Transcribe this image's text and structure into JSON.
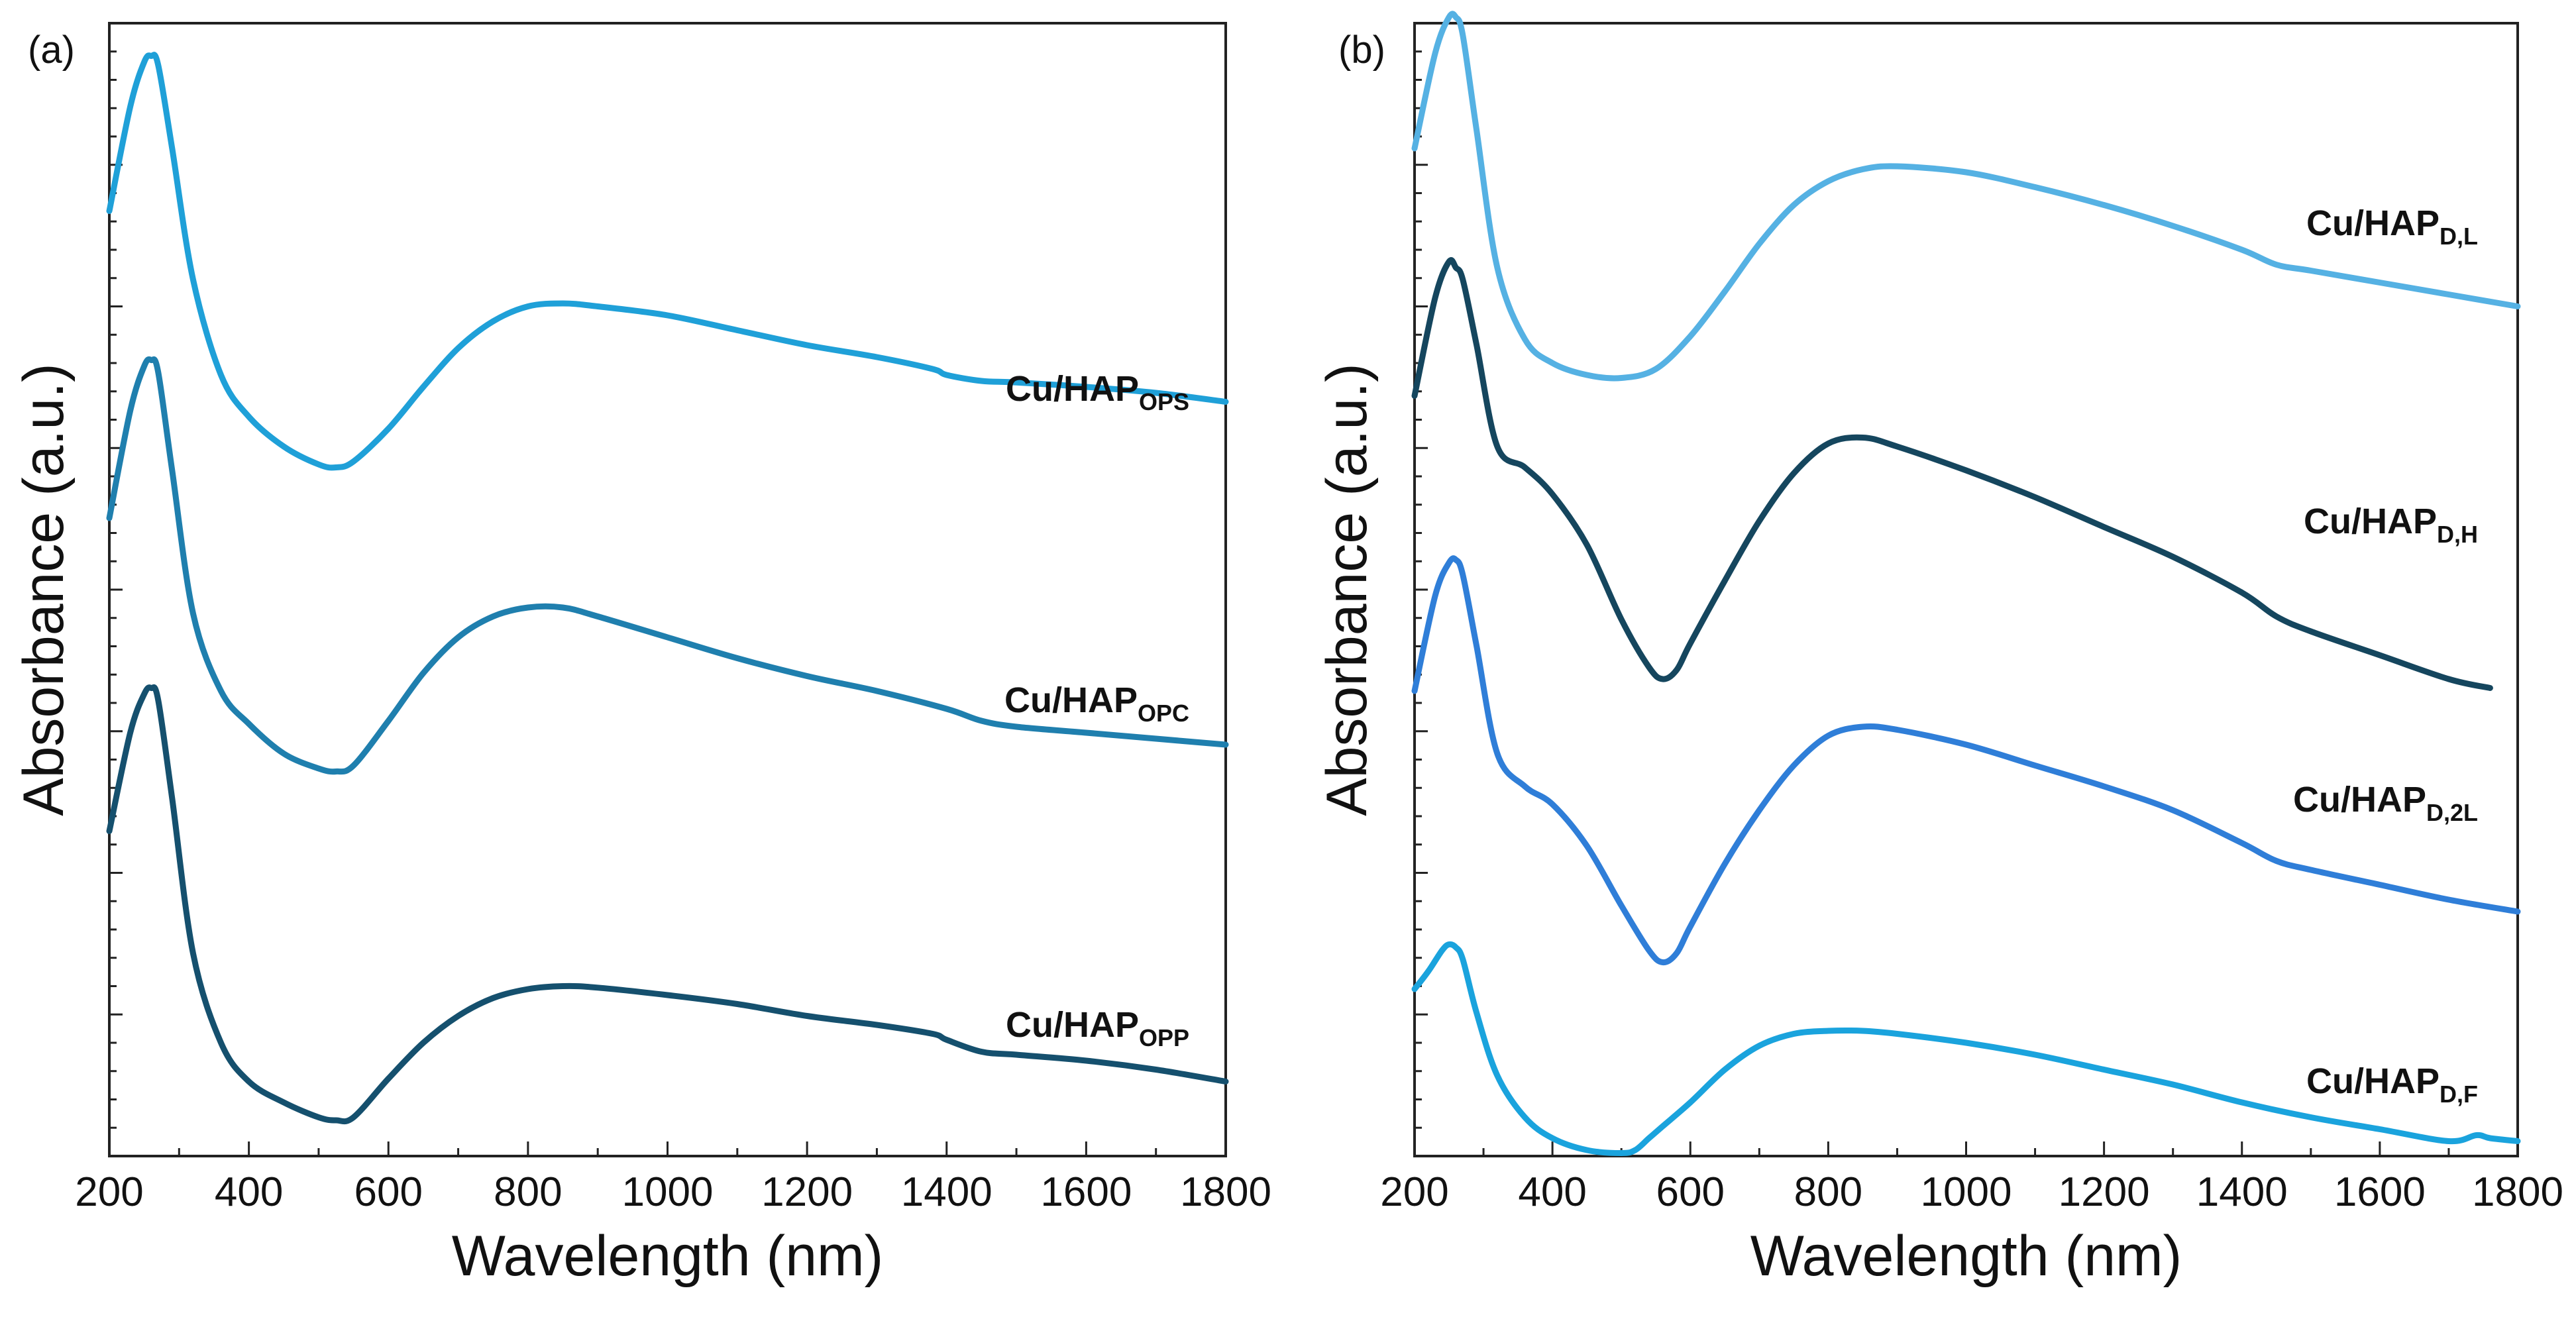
{
  "chart_data": [
    {
      "type": "line",
      "panel_label": "(a)",
      "xlabel": "Wavelength (nm)",
      "ylabel": "Absorbance (a.u.)",
      "xlim": [
        200,
        1800
      ],
      "ylim": [
        0,
        3.8
      ],
      "x_ticks": [
        200,
        400,
        600,
        800,
        1000,
        1200,
        1400,
        1600,
        1800
      ],
      "y_tick_labels": "none",
      "series": [
        {
          "name": "Cu/HAPOPS",
          "label_main": "Cu/HAP",
          "label_sub": "OPS",
          "color": "#1fa0d8",
          "x": [
            200,
            230,
            250,
            260,
            270,
            290,
            320,
            360,
            400,
            450,
            500,
            525,
            550,
            600,
            650,
            700,
            750,
            800,
            850,
            900,
            1000,
            1100,
            1200,
            1300,
            1380,
            1400,
            1450,
            1500,
            1600,
            1700,
            1800
          ],
          "y": [
            3.17,
            3.52,
            3.67,
            3.69,
            3.66,
            3.38,
            2.94,
            2.62,
            2.48,
            2.38,
            2.32,
            2.31,
            2.33,
            2.44,
            2.58,
            2.71,
            2.8,
            2.85,
            2.86,
            2.85,
            2.82,
            2.77,
            2.72,
            2.68,
            2.64,
            2.62,
            2.6,
            2.595,
            2.58,
            2.56,
            2.53
          ]
        },
        {
          "name": "Cu/HAPOPC",
          "label_main": "Cu/HAP",
          "label_sub": "OPC",
          "color": "#1f7fae",
          "x": [
            200,
            230,
            250,
            260,
            270,
            290,
            320,
            360,
            400,
            450,
            500,
            525,
            550,
            600,
            650,
            700,
            750,
            800,
            850,
            900,
            1000,
            1100,
            1200,
            1300,
            1400,
            1450,
            1500,
            1600,
            1700,
            1800
          ],
          "y": [
            2.14,
            2.5,
            2.65,
            2.67,
            2.63,
            2.3,
            1.82,
            1.56,
            1.45,
            1.35,
            1.3,
            1.29,
            1.31,
            1.46,
            1.62,
            1.74,
            1.81,
            1.84,
            1.84,
            1.81,
            1.74,
            1.67,
            1.61,
            1.56,
            1.5,
            1.46,
            1.44,
            1.42,
            1.4,
            1.38
          ]
        },
        {
          "name": "Cu/HAPOPP",
          "label_main": "Cu/HAP",
          "label_sub": "OPP",
          "color": "#15506e",
          "x": [
            200,
            230,
            250,
            260,
            270,
            290,
            320,
            360,
            400,
            450,
            500,
            525,
            550,
            600,
            650,
            700,
            750,
            800,
            850,
            900,
            1000,
            1100,
            1200,
            1300,
            1380,
            1400,
            1450,
            1500,
            1600,
            1700,
            1800
          ],
          "y": [
            1.09,
            1.42,
            1.55,
            1.57,
            1.53,
            1.2,
            0.68,
            0.38,
            0.25,
            0.18,
            0.13,
            0.12,
            0.13,
            0.26,
            0.38,
            0.47,
            0.53,
            0.56,
            0.57,
            0.565,
            0.54,
            0.51,
            0.47,
            0.44,
            0.41,
            0.39,
            0.35,
            0.34,
            0.32,
            0.29,
            0.25
          ]
        }
      ],
      "legend": "inline labels at right"
    },
    {
      "type": "line",
      "panel_label": "(b)",
      "xlabel": "Wavelength (nm)",
      "ylabel": "Absorbance (a.u.)",
      "xlim": [
        200,
        1800
      ],
      "ylim": [
        0,
        3.8
      ],
      "x_ticks": [
        200,
        400,
        600,
        800,
        1000,
        1200,
        1400,
        1600,
        1800
      ],
      "y_tick_labels": "none",
      "series": [
        {
          "name": "Cu/HAPD,L",
          "label_main": "Cu/HAP",
          "label_sub": "D,L",
          "color": "#55b1e3",
          "x": [
            200,
            230,
            250,
            260,
            270,
            290,
            320,
            360,
            400,
            450,
            500,
            550,
            600,
            650,
            700,
            750,
            800,
            850,
            900,
            1000,
            1100,
            1200,
            1300,
            1400,
            1450,
            1500,
            1600,
            1700,
            1800
          ],
          "y": [
            3.38,
            3.7,
            3.82,
            3.82,
            3.76,
            3.44,
            2.98,
            2.74,
            2.66,
            2.62,
            2.61,
            2.64,
            2.75,
            2.9,
            3.06,
            3.19,
            3.27,
            3.31,
            3.32,
            3.3,
            3.25,
            3.19,
            3.12,
            3.04,
            2.99,
            2.97,
            2.93,
            2.89,
            2.85
          ]
        },
        {
          "name": "Cu/HAPD,H",
          "label_main": "Cu/HAP",
          "label_sub": "D,H",
          "color": "#15465e",
          "x": [
            200,
            230,
            250,
            260,
            270,
            290,
            320,
            360,
            400,
            450,
            500,
            540,
            560,
            580,
            600,
            650,
            700,
            750,
            800,
            850,
            900,
            1000,
            1100,
            1200,
            1300,
            1400,
            1450,
            1500,
            1600,
            1700,
            1760
          ],
          "y": [
            2.55,
            2.88,
            3.0,
            2.98,
            2.94,
            2.72,
            2.38,
            2.31,
            2.22,
            2.05,
            1.8,
            1.64,
            1.6,
            1.63,
            1.72,
            1.93,
            2.13,
            2.29,
            2.39,
            2.41,
            2.38,
            2.3,
            2.21,
            2.11,
            2.01,
            1.89,
            1.81,
            1.76,
            1.68,
            1.6,
            1.57
          ]
        },
        {
          "name": "Cu/HAPD,2L",
          "label_main": "Cu/HAP",
          "label_sub": "D,2L",
          "color": "#2f7ed8",
          "x": [
            200,
            230,
            250,
            260,
            270,
            290,
            320,
            360,
            400,
            450,
            500,
            540,
            560,
            580,
            600,
            650,
            700,
            750,
            800,
            850,
            900,
            1000,
            1100,
            1200,
            1300,
            1400,
            1450,
            1500,
            1600,
            1700,
            1800
          ],
          "y": [
            1.56,
            1.88,
            1.99,
            2.0,
            1.95,
            1.71,
            1.35,
            1.24,
            1.18,
            1.04,
            0.84,
            0.69,
            0.65,
            0.68,
            0.77,
            0.98,
            1.16,
            1.31,
            1.41,
            1.44,
            1.43,
            1.38,
            1.31,
            1.24,
            1.16,
            1.05,
            0.99,
            0.96,
            0.91,
            0.86,
            0.82
          ]
        },
        {
          "name": "Cu/HAPD,F",
          "label_main": "Cu/HAP",
          "label_sub": "D,F",
          "color": "#1aa3dd",
          "x": [
            200,
            220,
            240,
            250,
            260,
            270,
            290,
            320,
            360,
            400,
            450,
            500,
            520,
            540,
            560,
            600,
            650,
            700,
            750,
            800,
            850,
            900,
            1000,
            1100,
            1200,
            1300,
            1400,
            1500,
            1600,
            1700,
            1740,
            1760,
            1800
          ],
          "y": [
            0.56,
            0.62,
            0.69,
            0.71,
            0.7,
            0.66,
            0.48,
            0.27,
            0.13,
            0.06,
            0.02,
            0.01,
            0.02,
            0.06,
            0.1,
            0.18,
            0.29,
            0.37,
            0.41,
            0.42,
            0.42,
            0.41,
            0.38,
            0.34,
            0.29,
            0.24,
            0.18,
            0.13,
            0.09,
            0.05,
            0.07,
            0.06,
            0.05
          ]
        }
      ],
      "legend": "inline labels at right"
    }
  ]
}
